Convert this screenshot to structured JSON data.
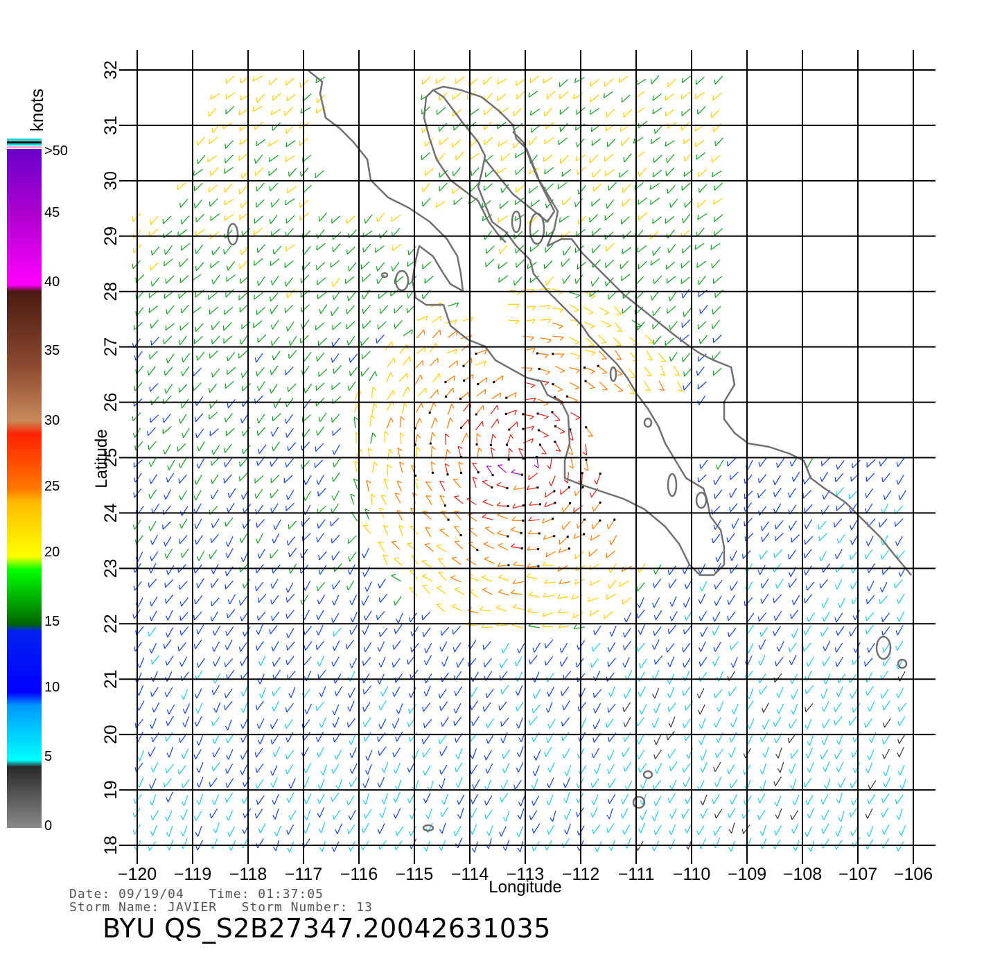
{
  "figure": {
    "xlabel": "Longitude",
    "ylabel": "Latitude",
    "lon_range": [
      -120,
      -106
    ],
    "lat_range": [
      18,
      32
    ],
    "lon_ticks": [
      "−120",
      "−119",
      "−118",
      "−117",
      "−116",
      "−115",
      "−114",
      "−113",
      "−112",
      "−111",
      "−110",
      "−109",
      "−108",
      "−107",
      "−106"
    ],
    "lat_ticks": [
      "18",
      "19",
      "20",
      "21",
      "22",
      "23",
      "24",
      "25",
      "26",
      "27",
      "28",
      "29",
      "30",
      "31",
      "32"
    ]
  },
  "legend": {
    "unit": "knots",
    "labels": [
      "0",
      "5",
      "10",
      "15",
      "20",
      "25",
      "30",
      "35",
      "40",
      "45",
      ">50"
    ],
    "colors": [
      "#7f7f7f",
      "#00e8ff",
      "#0000ff",
      "#00ff00",
      "#ffcc00",
      "#ff3300",
      "#8b4513",
      "#ff00ff",
      "#7700cc"
    ]
  },
  "footer": {
    "date_line": "Date: 09/19/04   Time: 01:37:05",
    "storm_line": "Storm Name: JAVIER   Storm Number: 13",
    "product_id": "BYU QS_S2B27347.20042631035"
  },
  "chart_data": {
    "type": "map",
    "content": "wind barb field over Baja California / Gulf of California region",
    "storm_center_approx": {
      "lon": -113.0,
      "lat": 25.0
    }
  }
}
